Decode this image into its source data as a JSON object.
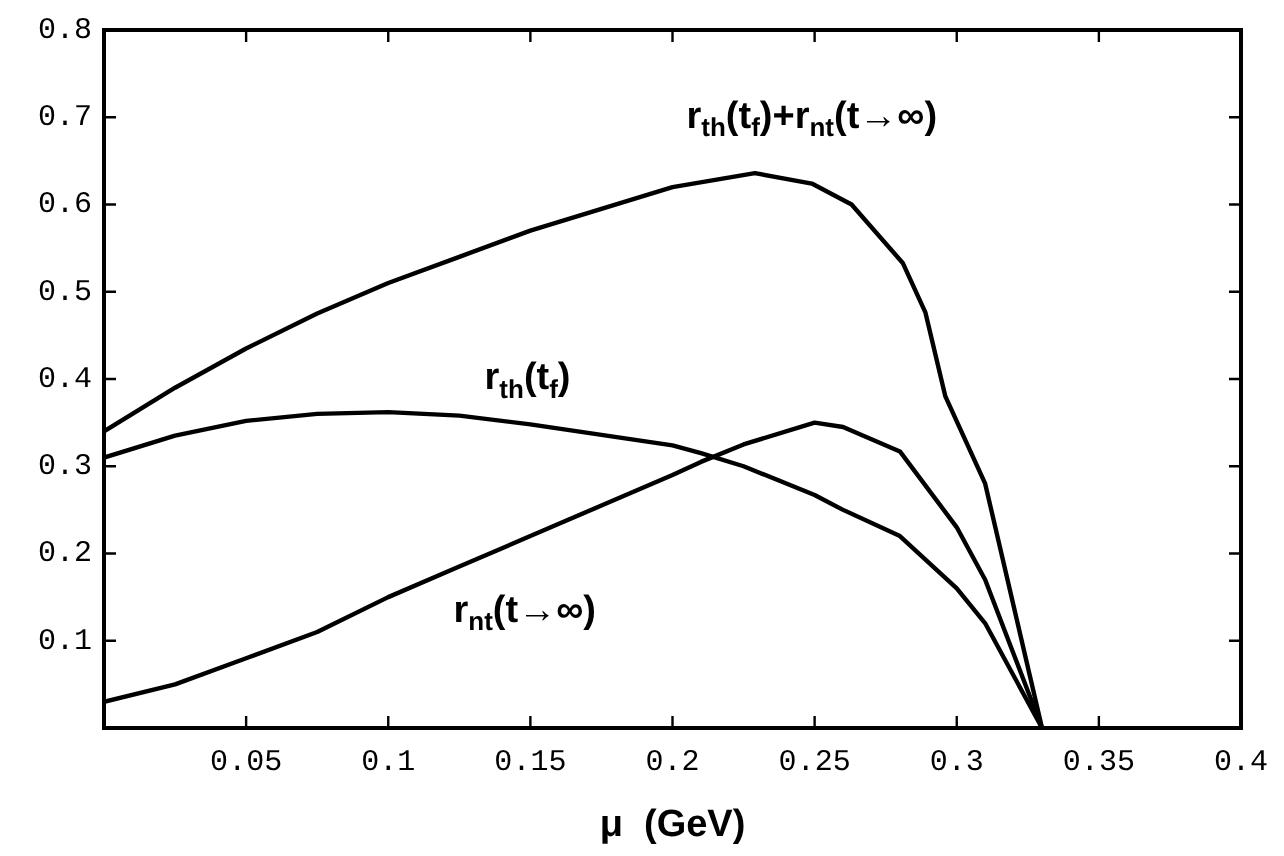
{
  "chart_data": {
    "type": "line",
    "xlabel": "μ  (GeV)",
    "x": [
      0,
      0.025,
      0.05,
      0.075,
      0.1,
      0.125,
      0.15,
      0.175,
      0.2,
      0.21,
      0.225,
      0.25,
      0.26,
      0.28,
      0.3,
      0.31,
      0.33
    ],
    "series": [
      {
        "name": "r$_{th}$(t$_{f}$)+r$_{nt}$(t→∞)",
        "color": "#000000",
        "x": [
          0,
          0.025,
          0.05,
          0.075,
          0.1,
          0.125,
          0.15,
          0.175,
          0.2,
          0.229,
          0.249,
          0.263,
          0.281,
          0.289,
          0.296,
          0.31,
          0.33
        ],
        "values": [
          0.34,
          0.39,
          0.435,
          0.475,
          0.51,
          0.54,
          0.57,
          0.595,
          0.62,
          0.636,
          0.624,
          0.6,
          0.533,
          0.476,
          0.38,
          0.28,
          0
        ]
      },
      {
        "name": "r$_{th}$(t$_{f}$)",
        "color": "#000000",
        "values": [
          0.31,
          0.335,
          0.352,
          0.36,
          0.362,
          0.358,
          0.348,
          0.336,
          0.324,
          0.315,
          0.3,
          0.267,
          0.25,
          0.22,
          0.16,
          0.12,
          0
        ]
      },
      {
        "name": "r$_{nt}$(t→∞)",
        "color": "#000000",
        "values": [
          0.03,
          0.05,
          0.08,
          0.11,
          0.15,
          0.185,
          0.22,
          0.255,
          0.29,
          0.305,
          0.325,
          0.35,
          0.345,
          0.317,
          0.23,
          0.17,
          0
        ]
      }
    ],
    "xlim": [
      0,
      0.4
    ],
    "ylim": [
      0,
      0.8
    ],
    "xticks": [
      {
        "value": 0,
        "label": null
      },
      0.05,
      0.1,
      0.15,
      0.2,
      0.25,
      0.3,
      0.35,
      0.4
    ],
    "yticks": [
      {
        "value": 0,
        "label": null
      },
      0.1,
      0.2,
      0.3,
      0.4,
      0.5,
      0.6,
      0.7,
      0.8
    ],
    "grid": false,
    "legend": false,
    "marker": "none",
    "line_style": "solid"
  }
}
